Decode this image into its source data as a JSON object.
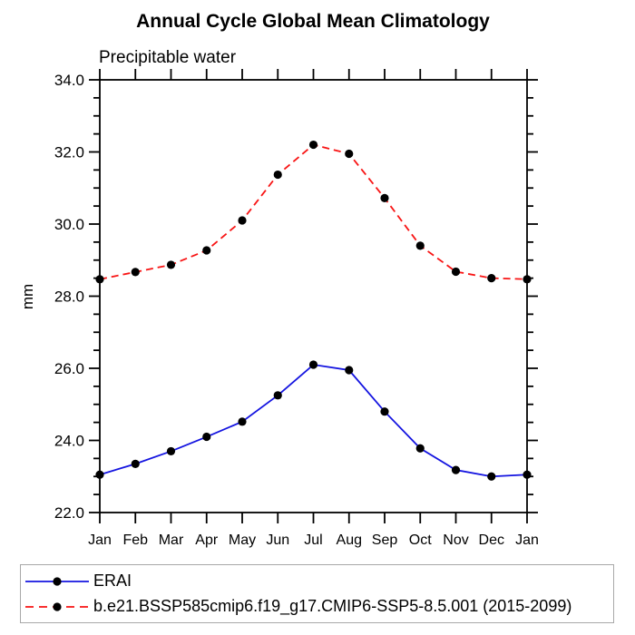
{
  "chart_data": {
    "type": "line",
    "title": "Annual Cycle Global Mean Climatology",
    "subtitle": "Precipitable water",
    "ylabel": "mm",
    "categories": [
      "Jan",
      "Feb",
      "Mar",
      "Apr",
      "May",
      "Jun",
      "Jul",
      "Aug",
      "Sep",
      "Oct",
      "Nov",
      "Dec",
      "Jan"
    ],
    "ylim": [
      22.0,
      34.0
    ],
    "ytick_major_interval": 2.0,
    "ytick_minor_interval": 0.5,
    "ytick_labels": [
      "22.0",
      "24.0",
      "26.0",
      "28.0",
      "30.0",
      "32.0",
      "34.0"
    ],
    "grid": false,
    "legend_position": "bottom-left boxed",
    "axis_color": "#000000",
    "marker_color": "#000000",
    "series": [
      {
        "name": "ERAI",
        "color": "#1414e0",
        "line_style": "solid",
        "marker": "filled-circle",
        "values": [
          23.05,
          23.35,
          23.7,
          24.1,
          24.52,
          25.25,
          26.1,
          25.95,
          24.8,
          23.78,
          23.18,
          23.0,
          23.05
        ]
      },
      {
        "name": "b.e21.BSSP585cmip6.f19_g17.CMIP6-SSP5-8.5.001 (2015-2099)",
        "color": "#f81414",
        "line_style": "dashed",
        "marker": "filled-circle",
        "values": [
          28.47,
          28.67,
          28.87,
          29.27,
          30.1,
          31.37,
          32.2,
          31.95,
          30.72,
          29.4,
          28.68,
          28.5,
          28.47
        ]
      }
    ]
  }
}
